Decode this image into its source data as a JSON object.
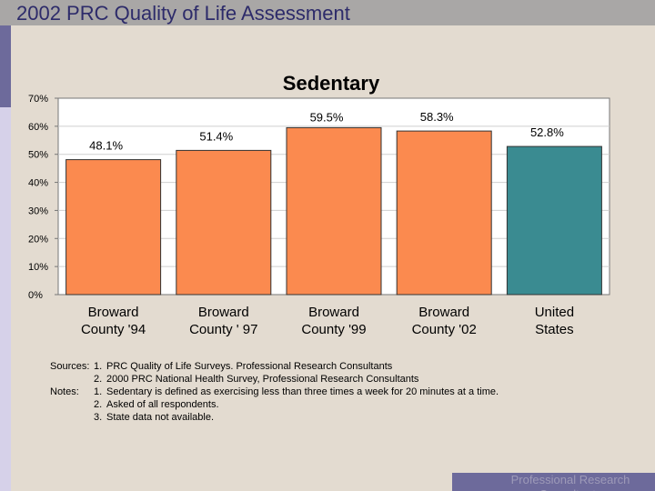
{
  "header": {
    "title": "2002 PRC Quality of Life Assessment"
  },
  "footer": {
    "brand": "Professional Research Consultants"
  },
  "notes": {
    "rows": [
      {
        "key": "Sources:",
        "num": "1.",
        "text": "PRC Quality of Life Surveys. Professional Research Consultants"
      },
      {
        "key": "",
        "num": "2.",
        "text": "2000 PRC National Health Survey, Professional Research Consultants"
      },
      {
        "key": "Notes:",
        "num": "1.",
        "text": "Sedentary is defined as exercising less than three times a week for 20 minutes at a time."
      },
      {
        "key": "",
        "num": "2.",
        "text": "Asked of all respondents."
      },
      {
        "key": "",
        "num": "3.",
        "text": "State data not available."
      }
    ]
  },
  "colors": {
    "broward": "#fb8a4f",
    "us": "#3a8b91",
    "plot_bg": "#ffffff",
    "grid": "#cfcfcf"
  },
  "chart_data": {
    "type": "bar",
    "title": "Sedentary",
    "xlabel": "",
    "ylabel": "",
    "ylim": [
      0,
      70
    ],
    "yticks": [
      "0%",
      "10%",
      "20%",
      "30%",
      "40%",
      "50%",
      "60%",
      "70%"
    ],
    "grid": true,
    "categories": [
      [
        "Broward",
        "County '94"
      ],
      [
        "Broward",
        "County ' 97"
      ],
      [
        "Broward",
        "County '99"
      ],
      [
        "Broward",
        "County '02"
      ],
      [
        "United",
        "States"
      ]
    ],
    "values": [
      48.1,
      51.4,
      59.5,
      58.3,
      52.8
    ],
    "value_labels": [
      "48.1%",
      "51.4%",
      "59.5%",
      "58.3%",
      "52.8%"
    ]
  }
}
